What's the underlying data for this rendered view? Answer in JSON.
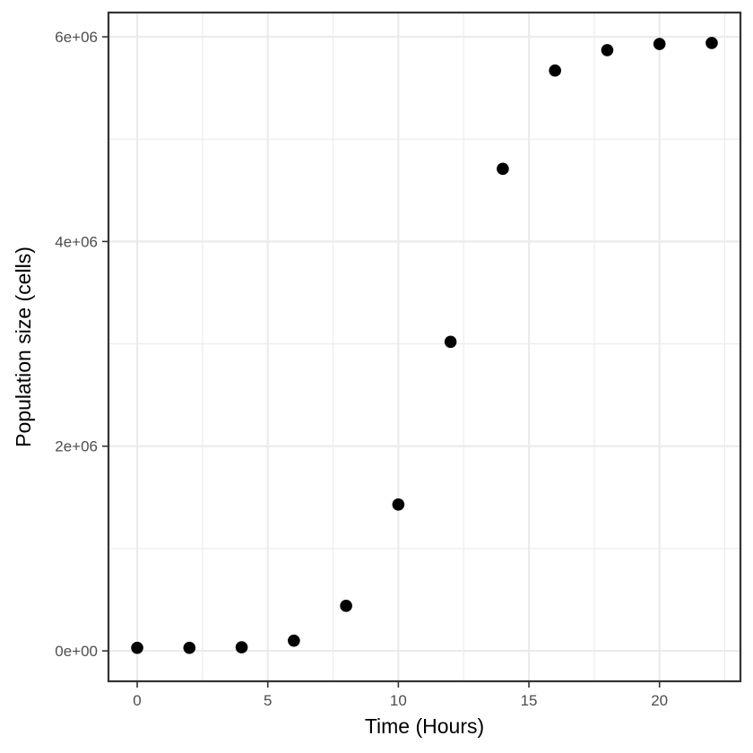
{
  "chart_data": {
    "type": "scatter",
    "title": "",
    "xlabel": "Time (Hours)",
    "ylabel": "Population size (cells)",
    "xlim": [
      -1.1,
      23.1
    ],
    "ylim": [
      -297000,
      6237000
    ],
    "x_ticks": [
      0,
      5,
      10,
      15,
      20
    ],
    "x_tick_labels": [
      "0",
      "5",
      "10",
      "15",
      "20"
    ],
    "x_minor_ticks": [
      2.5,
      7.5,
      12.5,
      17.5,
      22.5
    ],
    "y_ticks": [
      0,
      2000000,
      4000000,
      6000000
    ],
    "y_tick_labels": [
      "0e+00",
      "2e+06",
      "4e+06",
      "6e+06"
    ],
    "y_minor_ticks": [
      1000000,
      3000000,
      5000000
    ],
    "grid": true,
    "legend": "none",
    "point_color": "#000000",
    "series": [
      {
        "x": [
          0,
          2,
          4,
          6,
          8,
          10,
          12,
          14,
          16,
          18,
          20,
          22
        ],
        "y": [
          30000,
          30000,
          35000,
          100000,
          440000,
          1430000,
          3020000,
          4710000,
          5670000,
          5870000,
          5930000,
          5940000
        ]
      }
    ]
  }
}
